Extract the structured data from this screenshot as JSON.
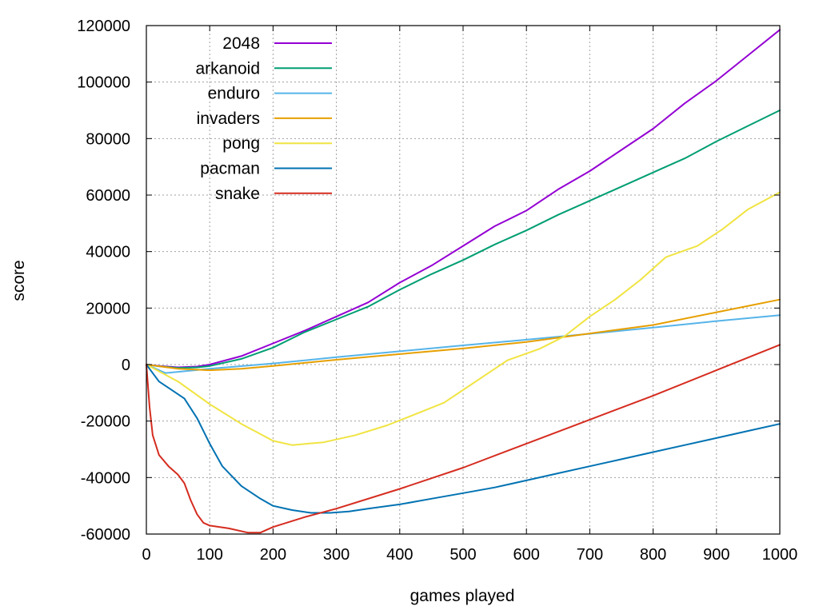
{
  "chart_data": {
    "type": "line",
    "xlabel": "games played",
    "ylabel": "score",
    "xlim": [
      0,
      1000
    ],
    "ylim": [
      -60000,
      120000
    ],
    "xticks": [
      0,
      100,
      200,
      300,
      400,
      500,
      600,
      700,
      800,
      900,
      1000
    ],
    "yticks": [
      -60000,
      -40000,
      -20000,
      0,
      20000,
      40000,
      60000,
      80000,
      100000,
      120000
    ],
    "xtick_labels": [
      "0",
      "100",
      "200",
      "300",
      "400",
      "500",
      "600",
      "700",
      "800",
      "900",
      "1000"
    ],
    "ytick_labels": [
      "-60000",
      "-40000",
      "-20000",
      "0",
      "20000",
      "40000",
      "60000",
      "80000",
      "100000",
      "120000"
    ],
    "grid": true,
    "legend_position": "top-left",
    "series": [
      {
        "name": "2048",
        "color": "#9400d3",
        "x": [
          0,
          20,
          50,
          80,
          100,
          150,
          200,
          250,
          300,
          350,
          400,
          450,
          500,
          550,
          600,
          650,
          700,
          750,
          800,
          850,
          900,
          950,
          1000
        ],
        "y": [
          0,
          -500,
          -1000,
          -700,
          0,
          3000,
          7500,
          12000,
          17000,
          22000,
          29000,
          35000,
          42000,
          49000,
          54500,
          62000,
          68500,
          76000,
          83500,
          92500,
          100500,
          109500,
          118500
        ]
      },
      {
        "name": "arkanoid",
        "color": "#009e73",
        "x": [
          0,
          20,
          50,
          80,
          100,
          150,
          200,
          250,
          300,
          350,
          400,
          450,
          500,
          550,
          600,
          650,
          700,
          750,
          800,
          850,
          900,
          950,
          1000
        ],
        "y": [
          0,
          -600,
          -1200,
          -1000,
          -500,
          2000,
          6000,
          11500,
          16000,
          20500,
          26500,
          32000,
          37000,
          42500,
          47500,
          53000,
          58000,
          63000,
          68000,
          73000,
          79000,
          84500,
          90000
        ]
      },
      {
        "name": "enduro",
        "color": "#56b4e9",
        "x": [
          0,
          30,
          100,
          200,
          300,
          400,
          500,
          600,
          700,
          800,
          900,
          1000
        ],
        "y": [
          0,
          -3000,
          -1500,
          400,
          2600,
          4700,
          6800,
          8800,
          10900,
          13100,
          15400,
          17500
        ]
      },
      {
        "name": "invaders",
        "color": "#e69f00",
        "x": [
          0,
          50,
          100,
          150,
          200,
          300,
          400,
          500,
          600,
          700,
          800,
          900,
          1000
        ],
        "y": [
          0,
          -1500,
          -2000,
          -1500,
          -500,
          1700,
          3700,
          5700,
          8000,
          11000,
          14000,
          18500,
          23000
        ]
      },
      {
        "name": "pong",
        "color": "#f0e442",
        "x": [
          0,
          50,
          100,
          150,
          200,
          230,
          280,
          330,
          380,
          420,
          470,
          520,
          570,
          620,
          660,
          700,
          740,
          780,
          820,
          870,
          910,
          950,
          1000
        ],
        "y": [
          0,
          -6000,
          -14000,
          -21000,
          -27000,
          -28500,
          -27500,
          -25000,
          -21500,
          -18000,
          -13500,
          -6000,
          1500,
          5500,
          10000,
          17000,
          23000,
          30000,
          38000,
          42000,
          48000,
          55000,
          61000
        ]
      },
      {
        "name": "pacman",
        "color": "#0072b2",
        "x": [
          0,
          20,
          40,
          60,
          80,
          100,
          120,
          150,
          180,
          200,
          230,
          260,
          290,
          320,
          350,
          400,
          450,
          500,
          550,
          600,
          650,
          700,
          750,
          800,
          850,
          900,
          950,
          1000
        ],
        "y": [
          0,
          -6000,
          -9000,
          -12000,
          -19000,
          -28000,
          -36000,
          -43000,
          -47500,
          -50000,
          -51500,
          -52500,
          -52500,
          -52000,
          -51000,
          -49500,
          -47500,
          -45500,
          -43500,
          -41000,
          -38500,
          -36000,
          -33500,
          -31000,
          -28500,
          -26000,
          -23500,
          -21000
        ]
      },
      {
        "name": "snake",
        "color": "#d55e00",
        "stroke": "#d52c1f",
        "x": [
          0,
          5,
          10,
          20,
          35,
          50,
          60,
          70,
          80,
          90,
          100,
          130,
          160,
          180,
          200,
          250,
          300,
          400,
          500,
          600,
          700,
          800,
          900,
          1000
        ],
        "y": [
          0,
          -15000,
          -25000,
          -32000,
          -36000,
          -39000,
          -42000,
          -48000,
          -53000,
          -56000,
          -57000,
          -58000,
          -59500,
          -59500,
          -57500,
          -54000,
          -51000,
          -44000,
          -36500,
          -28000,
          -19500,
          -11000,
          -2000,
          7000
        ]
      }
    ]
  }
}
